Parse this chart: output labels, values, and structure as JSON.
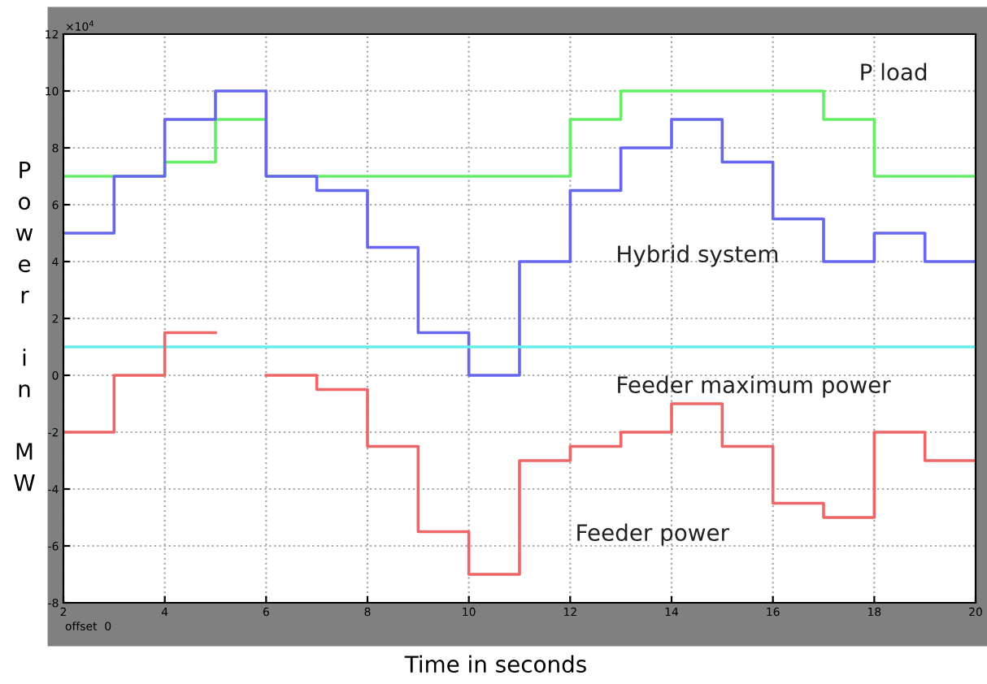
{
  "chart_data": {
    "type": "step",
    "xlabel": "Time in seconds",
    "ylabel": "Power in MW",
    "x": [
      2,
      3,
      4,
      5,
      6,
      7,
      8,
      9,
      10,
      11,
      12,
      13,
      14,
      15,
      16,
      17,
      18,
      19,
      20
    ],
    "series": [
      {
        "name": "P load",
        "color": "#66ee66",
        "values": [
          7,
          7,
          7.5,
          9,
          7,
          7,
          7,
          7,
          7,
          7,
          9,
          10,
          10,
          10,
          10,
          9,
          7,
          7,
          7
        ]
      },
      {
        "name": "Hybrid system",
        "color": "#6666ee",
        "values": [
          5,
          7,
          9,
          10,
          7,
          6.5,
          4.5,
          1.5,
          0,
          4,
          6.5,
          8,
          9,
          7.5,
          5.5,
          4,
          5,
          4,
          4
        ]
      },
      {
        "name": "Feeder maximum power",
        "color": "#66eeee",
        "type": "line",
        "x": [
          2,
          20
        ],
        "values": [
          1,
          1
        ]
      },
      {
        "name": "Feeder power",
        "color": "#ee6666",
        "values": [
          -2,
          0,
          1.5,
          null,
          0,
          -0.5,
          -2.5,
          -5.5,
          -7,
          -3,
          -2.5,
          -2,
          -1,
          -2.5,
          -4.5,
          -5,
          -2,
          -3,
          -3
        ]
      }
    ],
    "xlim": [
      2,
      20
    ],
    "xticks": [
      2,
      4,
      6,
      8,
      10,
      12,
      14,
      16,
      18,
      20
    ],
    "ylim": [
      -8,
      12
    ],
    "yticks": [
      -8,
      -6,
      -4,
      -2,
      0,
      2,
      4,
      6,
      8,
      10,
      12
    ],
    "annotations": [
      "×10$^{4}$",
      "offset  0"
    ],
    "grid": true,
    "legend": false
  }
}
